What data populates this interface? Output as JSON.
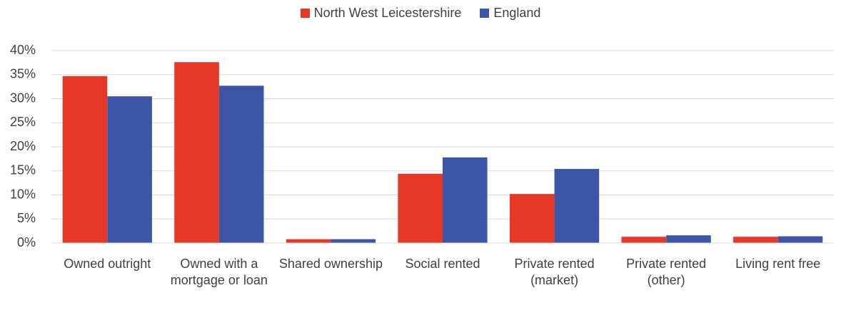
{
  "chart_data": {
    "type": "bar",
    "categories": [
      "Owned outright",
      "Owned with a mortgage or loan",
      "Shared ownership",
      "Social rented",
      "Private rented (market)",
      "Private rented (other)",
      "Living rent free"
    ],
    "series": [
      {
        "name": "North West Leicestershire",
        "color": "#e63827",
        "values": [
          34.7,
          37.6,
          0.8,
          14.4,
          10.2,
          1.3,
          1.3
        ]
      },
      {
        "name": "England",
        "color": "#3c56a6",
        "values": [
          30.5,
          32.7,
          0.8,
          17.8,
          15.4,
          1.6,
          1.4
        ]
      }
    ],
    "ylim": [
      0,
      40
    ],
    "yticks": [
      {
        "value": 0,
        "label": "0%"
      },
      {
        "value": 5,
        "label": "5%"
      },
      {
        "value": 10,
        "label": "10%"
      },
      {
        "value": 15,
        "label": "15%"
      },
      {
        "value": 20,
        "label": "20%"
      },
      {
        "value": 25,
        "label": "25%"
      },
      {
        "value": 30,
        "label": "30%"
      },
      {
        "value": 35,
        "label": "35%"
      },
      {
        "value": 40,
        "label": "40%"
      }
    ],
    "grid": true,
    "legend": "top"
  }
}
